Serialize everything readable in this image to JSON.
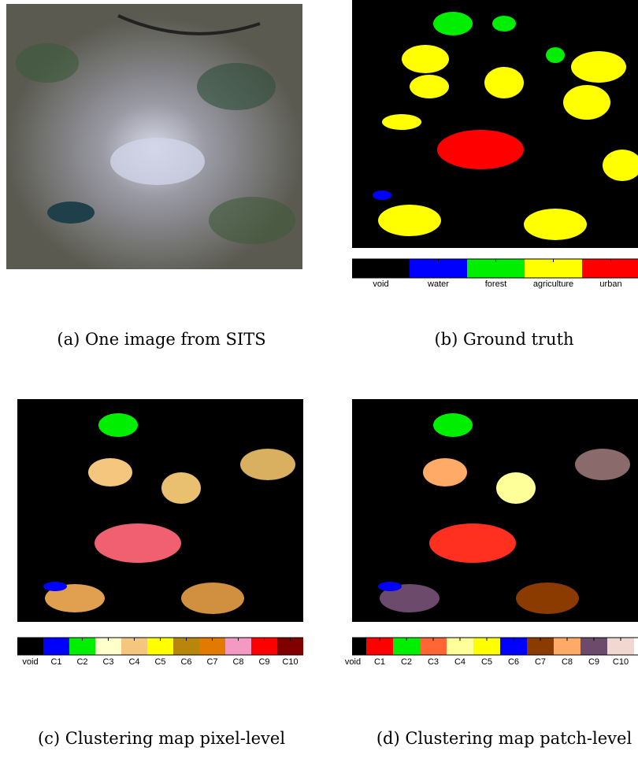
{
  "panels": [
    {
      "caption": "(a) One image from SITS"
    },
    {
      "caption": "(b) Ground truth",
      "legend": [
        {
          "label": "void",
          "color": "#000000"
        },
        {
          "label": "water",
          "color": "#0000ff"
        },
        {
          "label": "forest",
          "color": "#00ee00"
        },
        {
          "label": "agriculture",
          "color": "#ffff00"
        },
        {
          "label": "urban",
          "color": "#ff0000"
        }
      ]
    },
    {
      "caption": "(c) Clustering map pixel-level",
      "legend": [
        {
          "label": "void",
          "color": "#000000"
        },
        {
          "label": "C1",
          "color": "#0000ff"
        },
        {
          "label": "C2",
          "color": "#00ee00"
        },
        {
          "label": "C3",
          "color": "#ffffcc"
        },
        {
          "label": "C4",
          "color": "#f5c77e"
        },
        {
          "label": "C5",
          "color": "#ffff00"
        },
        {
          "label": "C6",
          "color": "#b8860b"
        },
        {
          "label": "C7",
          "color": "#e07b00"
        },
        {
          "label": "C8",
          "color": "#f49ac2"
        },
        {
          "label": "C9",
          "color": "#ff0000"
        },
        {
          "label": "C10",
          "color": "#800000"
        }
      ]
    },
    {
      "caption": "(d) Clustering map patch-level",
      "legend": [
        {
          "label": "void",
          "color": "#000000"
        },
        {
          "label": "C1",
          "color": "#ff0000"
        },
        {
          "label": "C2",
          "color": "#00ee00"
        },
        {
          "label": "C3",
          "color": "#ff6633"
        },
        {
          "label": "C4",
          "color": "#ffff99"
        },
        {
          "label": "C5",
          "color": "#ffff00"
        },
        {
          "label": "C6",
          "color": "#0000ff"
        },
        {
          "label": "C7",
          "color": "#8b3a00"
        },
        {
          "label": "C8",
          "color": "#ffaa66"
        },
        {
          "label": "C9",
          "color": "#6b4a6b"
        },
        {
          "label": "C10",
          "color": "#f0d8d0"
        }
      ]
    }
  ]
}
